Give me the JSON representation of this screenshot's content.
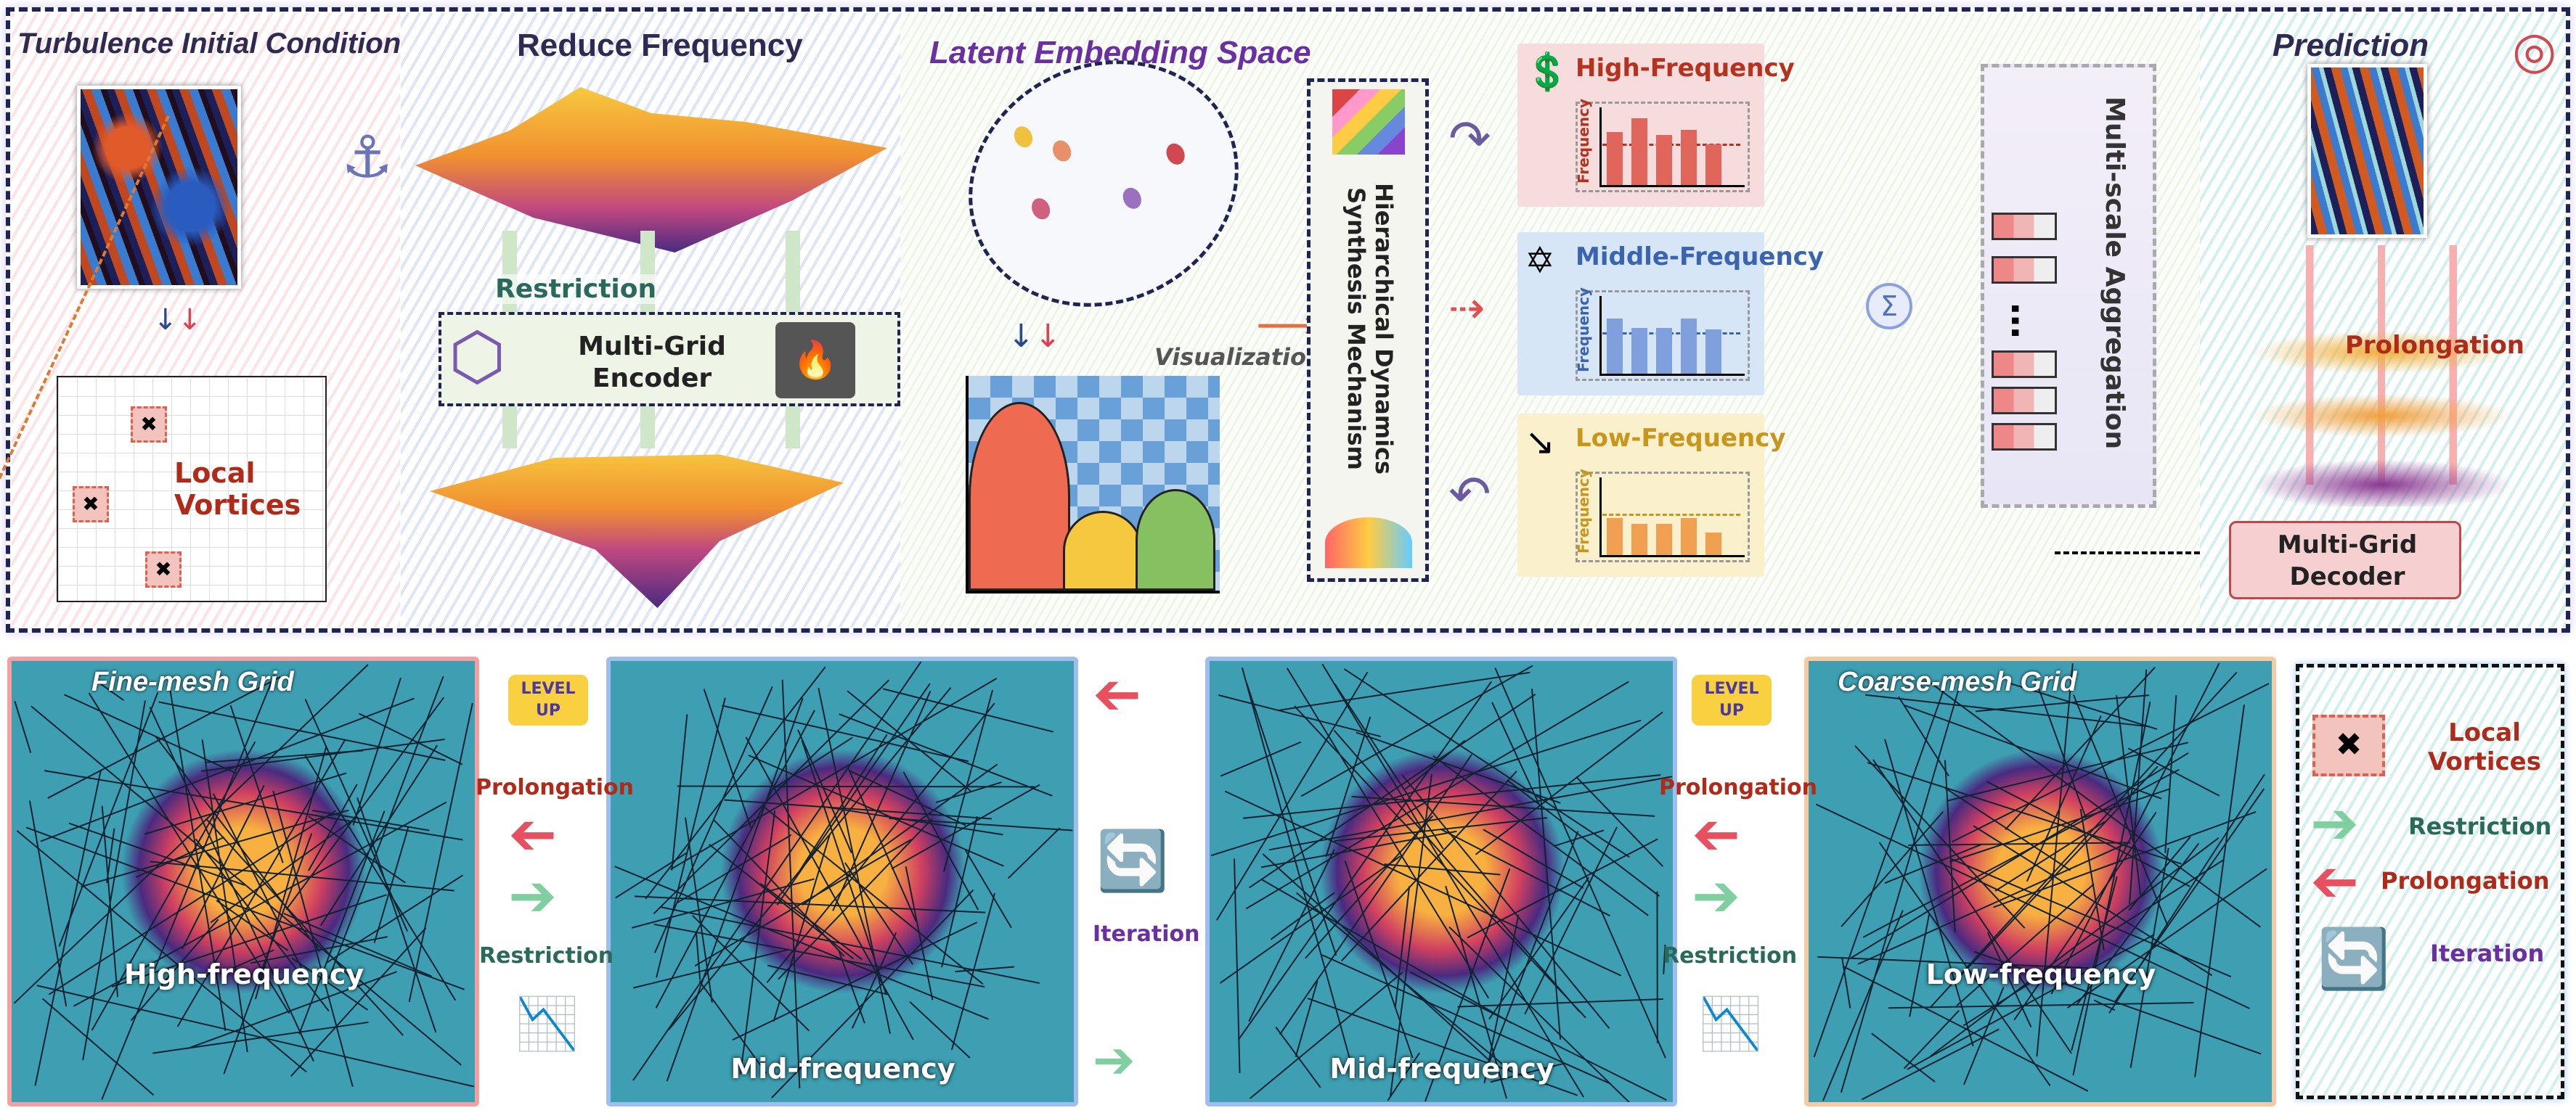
{
  "top": {
    "turbulence": {
      "title": "Turbulence Initial Condition",
      "vortices_label": "Local Vortices"
    },
    "reduce": {
      "title": "Reduce Frequency",
      "restriction": "Restriction",
      "encoder": "Multi-Grid Encoder"
    },
    "latent": {
      "title": "Latent Embedding Space",
      "visualization": "Visualization",
      "mechanism": "Hierarchical Dynamics Synthesis Mechanism"
    },
    "bands": [
      {
        "title": "High-Frequency",
        "ylabel": "Frequency",
        "color": "#b5321e",
        "bg": "#f6dcdc",
        "bar": "#e0665c",
        "values": [
          0.72,
          0.9,
          0.68,
          0.75,
          0.55
        ]
      },
      {
        "title": "Middle-Frequency",
        "ylabel": "Frequency",
        "color": "#3a63b0",
        "bg": "#d7e6f7",
        "bar": "#7fa0dc",
        "values": [
          0.75,
          0.62,
          0.62,
          0.75,
          0.6
        ]
      },
      {
        "title": "Low-Frequency",
        "ylabel": "Frequency",
        "color": "#c8961a",
        "bg": "#fbf0cc",
        "bar": "#f0a050",
        "values": [
          0.5,
          0.42,
          0.42,
          0.5,
          0.3
        ]
      }
    ],
    "aggregation": {
      "title": "Multi-scale Aggregation",
      "dots": "…",
      "sigma": "Σ"
    },
    "prediction": {
      "title": "Prediction",
      "prolongation": "Prolongation",
      "decoder": "Multi-Grid Decoder"
    }
  },
  "bottom": {
    "panels": [
      {
        "title": "Fine-mesh Grid",
        "label": "High-frequency"
      },
      {
        "title": "",
        "label": "Mid-frequency"
      },
      {
        "title": "",
        "label": "Mid-frequency"
      },
      {
        "title": "Coarse-mesh Grid",
        "label": "Low-frequency"
      }
    ],
    "connectors": {
      "level_up": "LEVEL UP",
      "prolongation": "Prolongation",
      "restriction": "Restriction",
      "iteration": "Iteration"
    },
    "legend": {
      "vortices": "Local Vortices",
      "restriction": "Restriction",
      "prolongation": "Prolongation",
      "iteration": "Iteration"
    }
  }
}
